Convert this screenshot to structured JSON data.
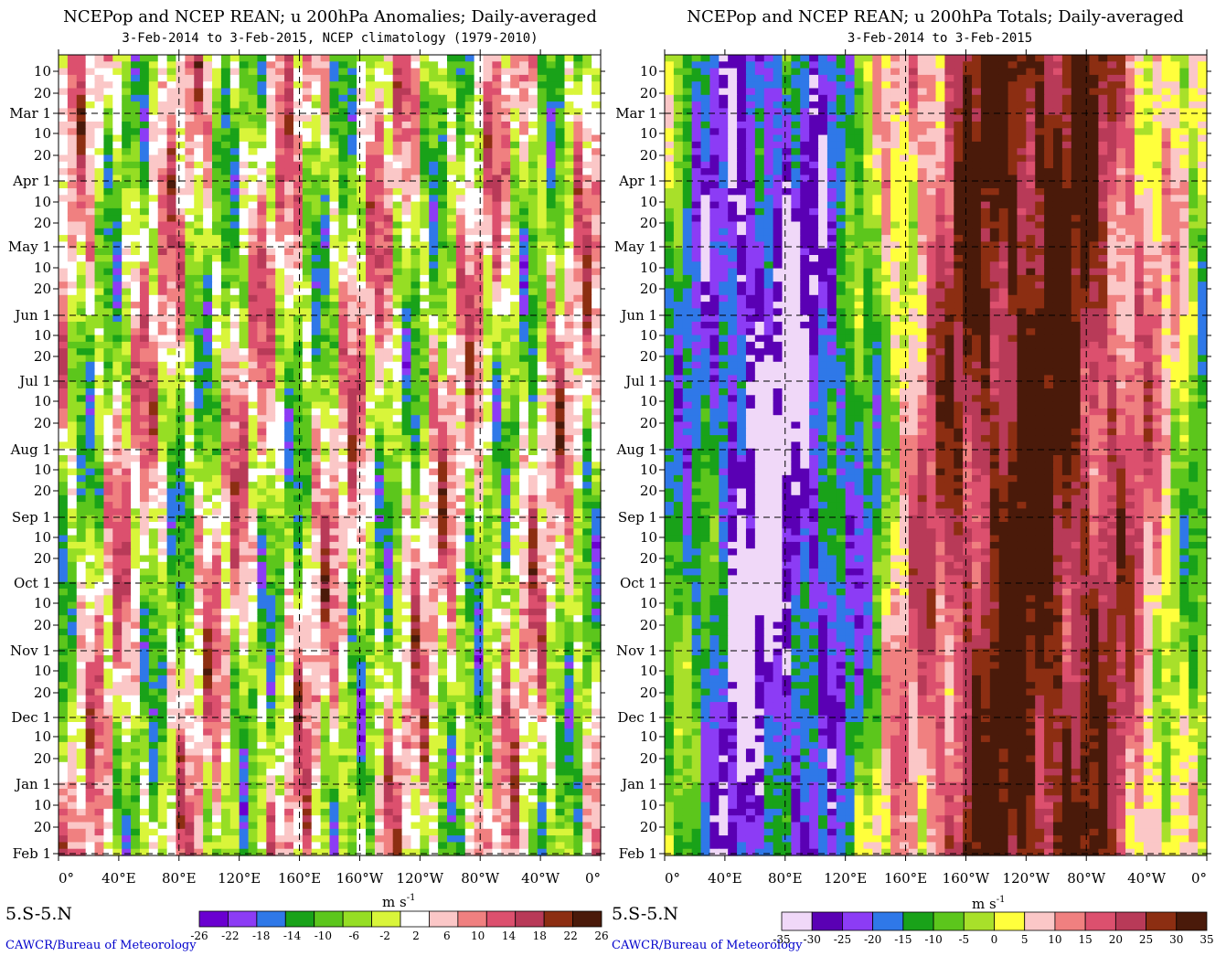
{
  "chart_data": [
    {
      "type": "heatmap",
      "title": "NCEPop and NCEP REAN; u 200hPa Anomalies; Daily-averaged",
      "subtitle": "3-Feb-2014 to  3-Feb-2015, NCEP climatology (1979-2010)",
      "x_tick_labels": [
        "0°",
        "40°E",
        "80°E",
        "120°E",
        "160°E",
        "160°W",
        "120°W",
        "80°W",
        "40°W",
        "0°"
      ],
      "x_ticks_deg": [
        0,
        40,
        80,
        120,
        160,
        200,
        240,
        280,
        320,
        360
      ],
      "y_tick_labels": [
        "10",
        "20",
        "Mar 1",
        "10",
        "20",
        "Apr 1",
        "10",
        "20",
        "May 1",
        "10",
        "20",
        "Jun 1",
        "10",
        "20",
        "Jul 1",
        "10",
        "20",
        "Aug 1",
        "10",
        "20",
        "Sep 1",
        "10",
        "20",
        "Oct 1",
        "10",
        "20",
        "Nov 1",
        "10",
        "20",
        "Dec 1",
        "10",
        "20",
        "Jan 1",
        "10",
        "20",
        "Feb 1"
      ],
      "region_label": "5.S-5.N",
      "credit": "CAWCR/Bureau of Meteorology",
      "colorbar": {
        "units": "m s",
        "units_exp": "-1",
        "tick_labels": [
          "-26",
          "-22",
          "-18",
          "-14",
          "-10",
          "-6",
          "-2",
          "2",
          "6",
          "10",
          "14",
          "18",
          "22",
          "26"
        ],
        "colors": [
          "#6a00d0",
          "#8c3cf5",
          "#2f78e8",
          "#19a219",
          "#5cc61c",
          "#96de24",
          "#d9f53a",
          "#ffffff",
          "#fbc7c7",
          "#f08080",
          "#dc506e",
          "#b83a58",
          "#8c2e12",
          "#4a1a0a"
        ]
      }
    },
    {
      "type": "heatmap",
      "title": "NCEPop and NCEP REAN; u 200hPa Totals; Daily-averaged",
      "subtitle": "3-Feb-2014 to  3-Feb-2015",
      "x_tick_labels": [
        "0°",
        "40°E",
        "80°E",
        "120°E",
        "160°E",
        "160°W",
        "120°W",
        "80°W",
        "40°W",
        "0°"
      ],
      "x_ticks_deg": [
        0,
        40,
        80,
        120,
        160,
        200,
        240,
        280,
        320,
        360
      ],
      "y_tick_labels": [
        "10",
        "20",
        "Mar 1",
        "10",
        "20",
        "Apr 1",
        "10",
        "20",
        "May 1",
        "10",
        "20",
        "Jun 1",
        "10",
        "20",
        "Jul 1",
        "10",
        "20",
        "Aug 1",
        "10",
        "20",
        "Sep 1",
        "10",
        "20",
        "Oct 1",
        "10",
        "20",
        "Nov 1",
        "10",
        "20",
        "Dec 1",
        "10",
        "20",
        "Jan 1",
        "10",
        "20",
        "Feb 1"
      ],
      "region_label": "5.S-5.N",
      "credit": "CAWCR/Bureau of Meteorology",
      "colorbar": {
        "units": "m s",
        "units_exp": "-1",
        "tick_labels": [
          "-35",
          "-30",
          "-25",
          "-20",
          "-15",
          "-10",
          "-5",
          "0",
          "5",
          "10",
          "15",
          "20",
          "25",
          "30",
          "35"
        ],
        "colors": [
          "#f0d8f8",
          "#5a00b4",
          "#8c3cf5",
          "#2f78e8",
          "#19a219",
          "#5cc61c",
          "#a8e02a",
          "#ffff3c",
          "#fbc7c7",
          "#f08080",
          "#dc506e",
          "#b83a58",
          "#8c2e12",
          "#4a1a0a"
        ]
      }
    }
  ]
}
